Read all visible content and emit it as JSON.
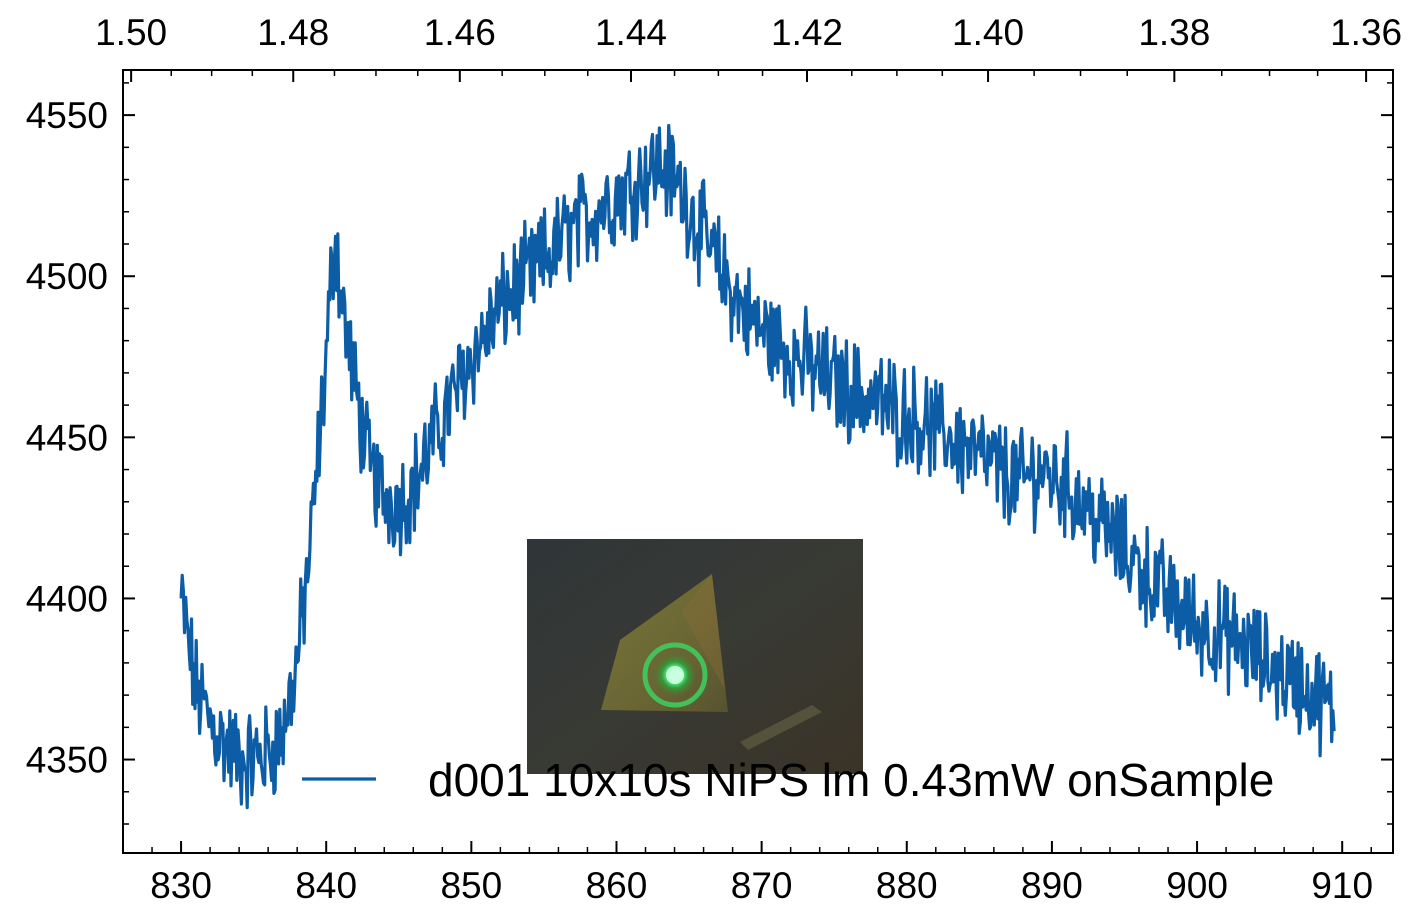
{
  "chart_data": {
    "type": "line",
    "title": "",
    "xlabel": "",
    "ylabel": "",
    "xlim": [
      826,
      913.5
    ],
    "ylim": [
      4321,
      4564
    ],
    "x_ticks": [
      830,
      840,
      850,
      860,
      870,
      880,
      890,
      900,
      910
    ],
    "x_tick_labels": [
      "830",
      "840",
      "850",
      "860",
      "870",
      "880",
      "890",
      "900",
      "910"
    ],
    "y_ticks": [
      4350,
      4400,
      4450,
      4500,
      4550
    ],
    "y_tick_labels": [
      "4350",
      "4400",
      "4450",
      "4500",
      "4550"
    ],
    "top_axis": {
      "ticks": [
        1.5,
        1.48,
        1.46,
        1.44,
        1.42,
        1.4,
        1.38,
        1.36
      ],
      "tick_labels": [
        "1.50",
        "1.48",
        "1.46",
        "1.44",
        "1.42",
        "1.40",
        "1.38",
        "1.36"
      ],
      "conversion": "energy_eV = 1239.84 / wavelength_nm"
    },
    "grid": false,
    "legend": {
      "position": "lower-right"
    },
    "series": [
      {
        "name": "d001 10x10s NiPS lm 0.43mW onSample",
        "color": "#0c5da5",
        "x": [
          830,
          831,
          832,
          833,
          834,
          835,
          836,
          837,
          838,
          839,
          840,
          840.6,
          841,
          842,
          843,
          844,
          845,
          846,
          847,
          848,
          849,
          850,
          851,
          852,
          853,
          854,
          855,
          856,
          857,
          858,
          859,
          860,
          861,
          862,
          863,
          864,
          865,
          866,
          867,
          868,
          869,
          870,
          871,
          872,
          873,
          874,
          875,
          876,
          877,
          878,
          879,
          880,
          881,
          882,
          883,
          884,
          885,
          886,
          887,
          888,
          889,
          890,
          891,
          892,
          893,
          894,
          895,
          896,
          897,
          898,
          899,
          900,
          901,
          902,
          903,
          904,
          905,
          906,
          907,
          908,
          909,
          909.5
        ],
        "y": [
          4400,
          4372,
          4362,
          4355,
          4350,
          4350,
          4352,
          4358,
          4380,
          4420,
          4475,
          4515,
          4495,
          4465,
          4440,
          4432,
          4430,
          4435,
          4445,
          4455,
          4465,
          4475,
          4482,
          4490,
          4496,
          4500,
          4505,
          4510,
          4515,
          4518,
          4522,
          4525,
          4528,
          4532,
          4535,
          4530,
          4522,
          4512,
          4503,
          4495,
          4488,
          4483,
          4480,
          4476,
          4473,
          4470,
          4467,
          4465,
          4463,
          4461,
          4459,
          4457,
          4455,
          4452,
          4450,
          4447,
          4444,
          4441,
          4438,
          4436,
          4440,
          4438,
          4435,
          4430,
          4425,
          4420,
          4415,
          4410,
          4405,
          4400,
          4396,
          4392,
          4390,
          4388,
          4386,
          4382,
          4379,
          4376,
          4374,
          4370,
          4367,
          4360
        ]
      }
    ],
    "inset_image": {
      "description_icon": "triangle-flake-laser-spot",
      "background_color": "#3a3a35",
      "flake_color": "#8a8a3a",
      "spot_color": "#7fff9a"
    }
  }
}
